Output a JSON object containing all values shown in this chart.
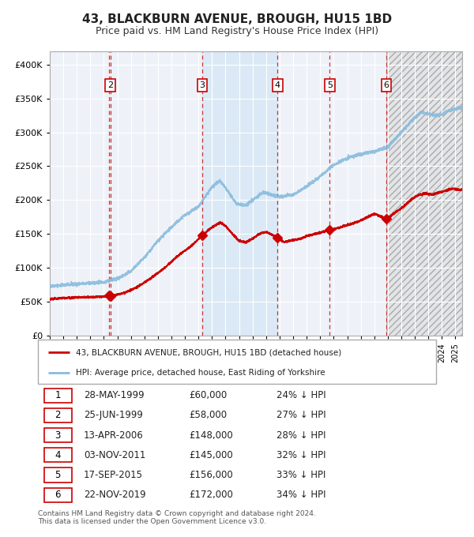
{
  "title": "43, BLACKBURN AVENUE, BROUGH, HU15 1BD",
  "subtitle": "Price paid vs. HM Land Registry's House Price Index (HPI)",
  "title_fontsize": 11,
  "subtitle_fontsize": 9,
  "background_color": "#ffffff",
  "plot_bg_color": "#eef2f8",
  "grid_color": "#ffffff",
  "ylim": [
    0,
    420000
  ],
  "yticks": [
    0,
    50000,
    100000,
    150000,
    200000,
    250000,
    300000,
    350000,
    400000
  ],
  "ytick_labels": [
    "£0",
    "£50K",
    "£100K",
    "£150K",
    "£200K",
    "£250K",
    "£300K",
    "£350K",
    "£400K"
  ],
  "legend_entries": [
    "43, BLACKBURN AVENUE, BROUGH, HU15 1BD (detached house)",
    "HPI: Average price, detached house, East Riding of Yorkshire"
  ],
  "legend_colors": [
    "#cc0000",
    "#88bbdd"
  ],
  "sales": [
    {
      "num": 1,
      "date_x": 1999.38,
      "price": 60000
    },
    {
      "num": 2,
      "date_x": 1999.48,
      "price": 58000
    },
    {
      "num": 3,
      "date_x": 2006.28,
      "price": 148000
    },
    {
      "num": 4,
      "date_x": 2011.84,
      "price": 145000
    },
    {
      "num": 5,
      "date_x": 2015.71,
      "price": 156000
    },
    {
      "num": 6,
      "date_x": 2019.89,
      "price": 172000
    }
  ],
  "table_rows": [
    [
      "1",
      "28-MAY-1999",
      "£60,000",
      "24% ↓ HPI"
    ],
    [
      "2",
      "25-JUN-1999",
      "£58,000",
      "27% ↓ HPI"
    ],
    [
      "3",
      "13-APR-2006",
      "£148,000",
      "28% ↓ HPI"
    ],
    [
      "4",
      "03-NOV-2011",
      "£145,000",
      "32% ↓ HPI"
    ],
    [
      "5",
      "17-SEP-2015",
      "£156,000",
      "33% ↓ HPI"
    ],
    [
      "6",
      "22-NOV-2019",
      "£172,000",
      "34% ↓ HPI"
    ]
  ],
  "footer": "Contains HM Land Registry data © Crown copyright and database right 2024.\nThis data is licensed under the Open Government Licence v3.0.",
  "xmin": 1995.0,
  "xmax": 2025.5,
  "shaded_region": [
    2006.28,
    2011.84
  ],
  "hatch_xmin": 2019.89,
  "hatch_xmax": 2025.5,
  "red_line_color": "#cc0000",
  "blue_line_color": "#88bbdd",
  "sale_marker_color": "#cc0000",
  "dashed_line_color": "#cc3333"
}
